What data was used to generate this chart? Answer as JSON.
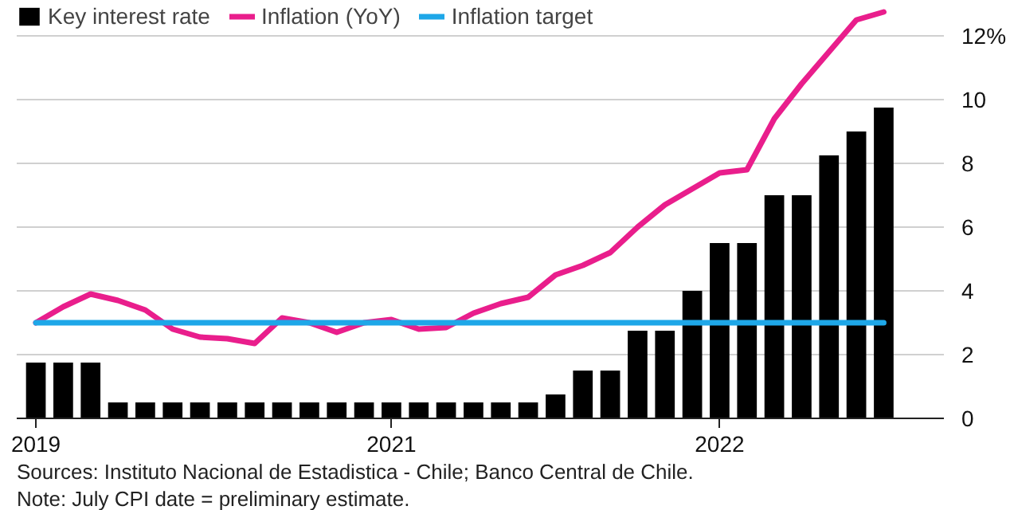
{
  "chart_data": {
    "type": "bar",
    "categories": [
      "2019",
      null,
      null,
      null,
      null,
      null,
      null,
      null,
      null,
      null,
      null,
      null,
      null,
      "2021",
      null,
      null,
      null,
      null,
      null,
      null,
      null,
      null,
      null,
      null,
      null,
      "2022",
      null,
      null,
      null,
      null,
      null,
      null
    ],
    "series": [
      {
        "name": "Key interest rate",
        "color": "#000000",
        "values": [
          1.75,
          1.75,
          1.75,
          0.5,
          0.5,
          0.5,
          0.5,
          0.5,
          0.5,
          0.5,
          0.5,
          0.5,
          0.5,
          0.5,
          0.5,
          0.5,
          0.5,
          0.5,
          0.5,
          0.75,
          1.5,
          1.5,
          2.75,
          2.75,
          4.0,
          5.5,
          5.5,
          7.0,
          7.0,
          8.25,
          9.0,
          9.75
        ]
      },
      {
        "name": "Inflation (YoY)",
        "type": "line",
        "color": "#e91e8c",
        "values": [
          3.0,
          3.5,
          3.9,
          3.7,
          3.4,
          2.8,
          2.55,
          2.5,
          2.35,
          3.15,
          3.0,
          2.7,
          3.0,
          3.1,
          2.8,
          2.85,
          3.3,
          3.6,
          3.8,
          4.5,
          4.8,
          5.2,
          6.0,
          6.7,
          7.2,
          7.7,
          7.8,
          9.4,
          10.5,
          11.5,
          12.5,
          12.75
        ]
      },
      {
        "name": "Inflation target",
        "type": "line",
        "color": "#1ea7e8",
        "values": [
          3,
          3,
          3,
          3,
          3,
          3,
          3,
          3,
          3,
          3,
          3,
          3,
          3,
          3,
          3,
          3,
          3,
          3,
          3,
          3,
          3,
          3,
          3,
          3,
          3,
          3,
          3,
          3,
          3,
          3,
          3,
          3
        ]
      }
    ],
    "ylim": [
      0,
      13
    ],
    "yticks": [
      0,
      2,
      4,
      6,
      8,
      10,
      {
        "value": 12,
        "label": "12%"
      }
    ],
    "grid": "y",
    "legend": "top left",
    "annotations": [
      "Sources: Instituto Nacional de Estadistica - Chile; Banco Central de Chile.",
      "Note: July CPI date = preliminary estimate."
    ]
  }
}
